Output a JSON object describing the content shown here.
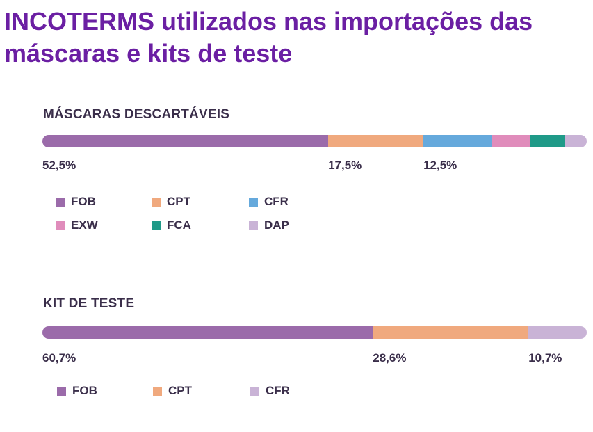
{
  "page": {
    "title": "INCOTERMS utilizados nas importações das máscaras e kits de teste"
  },
  "chart_data": [
    {
      "type": "bar",
      "orientation": "stacked-horizontal-100",
      "title": "MÁSCARAS DESCARTÁVEIS",
      "categories": [
        "FOB",
        "CPT",
        "CFR",
        "EXW",
        "FCA",
        "DAP"
      ],
      "values": [
        52.5,
        17.5,
        12.5,
        7.0,
        6.5,
        4.0
      ],
      "labels": [
        "52,5%",
        "17,5%",
        "12,5%",
        "",
        "",
        ""
      ],
      "colors": [
        "#9b6baa",
        "#f0a97e",
        "#65a9dc",
        "#e08cbb",
        "#1f9a88",
        "#c9b3d6"
      ],
      "unit": "%"
    },
    {
      "type": "bar",
      "orientation": "stacked-horizontal-100",
      "title": "KIT DE TESTE",
      "categories": [
        "FOB",
        "CPT",
        "CFR"
      ],
      "values": [
        60.7,
        28.6,
        10.7
      ],
      "labels": [
        "60,7%",
        "28,6%",
        "10,7%"
      ],
      "colors": [
        "#9b6baa",
        "#f0a97e",
        "#c9b3d6"
      ],
      "unit": "%"
    }
  ]
}
